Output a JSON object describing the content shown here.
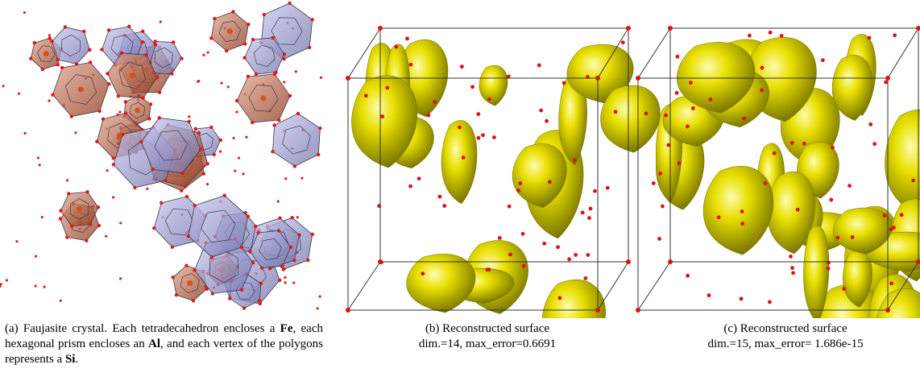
{
  "figures": [
    {
      "caption": [
        "(a) Faujasite crystal. Each tetradecahedron encloses a ",
        "Fe",
        ", each hexagonal prism encloses an ",
        "Al",
        ", and each vertex of the polygons represents a ",
        "Si",
        "."
      ]
    },
    {
      "caption": [
        "(b) Reconstructed surface",
        "dim.=14, max_error=0.6691"
      ]
    },
    {
      "caption": [
        "(c) Reconstructed surface",
        "dim.=15, max_error= 1.686e-15"
      ]
    }
  ]
}
